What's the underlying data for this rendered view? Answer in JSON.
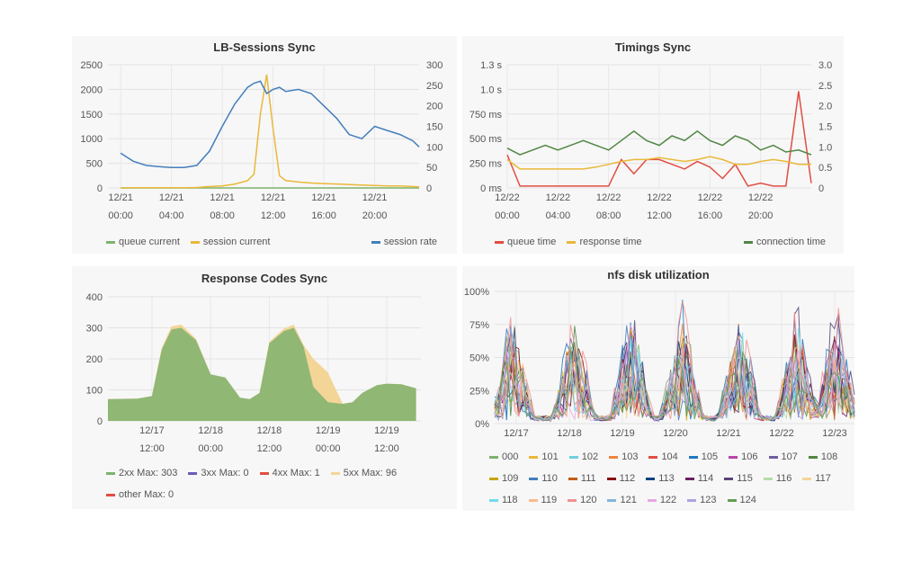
{
  "chart_data": [
    {
      "id": "lb",
      "type": "line",
      "title": "LB-Sessions Sync",
      "y_ticks_left": [
        "2500",
        "2000",
        "1500",
        "1000",
        "500",
        "0"
      ],
      "y_ticks_right": [
        "300",
        "250",
        "200",
        "150",
        "100",
        "50",
        "0"
      ],
      "ylim_left": [
        0,
        2500
      ],
      "ylim_right": [
        0,
        300
      ],
      "x_ticks": [
        {
          "date": "12/21",
          "time": "00:00"
        },
        {
          "date": "12/21",
          "time": "04:00"
        },
        {
          "date": "12/21",
          "time": "08:00"
        },
        {
          "date": "12/21",
          "time": "12:00"
        },
        {
          "date": "12/21",
          "time": "16:00"
        },
        {
          "date": "12/21",
          "time": "20:00"
        }
      ],
      "x_hours": [
        0,
        1,
        2,
        3,
        4,
        5,
        6,
        7,
        8,
        9,
        10,
        10.5,
        11,
        11.5,
        12,
        12.5,
        13,
        14,
        15,
        16,
        17,
        18,
        19,
        20,
        21,
        22,
        23,
        23.5
      ],
      "grid": true,
      "series": [
        {
          "name": "queue current",
          "color": "#7eb26d",
          "axis": "left",
          "values": [
            0,
            0,
            0,
            0,
            0,
            0,
            0,
            0,
            0,
            0,
            0,
            0,
            0,
            0,
            0,
            0,
            0,
            0,
            0,
            0,
            0,
            0,
            0,
            0,
            0,
            0,
            0,
            0
          ]
        },
        {
          "name": "session current",
          "color": "#eab839",
          "axis": "left",
          "values": [
            0,
            5,
            5,
            5,
            5,
            5,
            10,
            30,
            40,
            80,
            150,
            280,
            1500,
            2300,
            1200,
            250,
            150,
            120,
            100,
            90,
            80,
            70,
            60,
            50,
            40,
            40,
            30,
            20
          ]
        },
        {
          "name": "session rate",
          "color": "#447ebc",
          "axis": "right",
          "values": [
            85,
            65,
            55,
            52,
            50,
            50,
            55,
            90,
            150,
            205,
            245,
            255,
            260,
            230,
            240,
            245,
            235,
            240,
            230,
            200,
            170,
            130,
            120,
            150,
            140,
            130,
            115,
            100
          ]
        }
      ],
      "legend_position": "bottom"
    },
    {
      "id": "timings",
      "type": "line",
      "title": "Timings Sync",
      "y_ticks_left": [
        "1.3 s",
        "1.0 s",
        "750 ms",
        "500 ms",
        "250 ms",
        "0 ms"
      ],
      "y_ticks_right": [
        "3.0",
        "2.5",
        "2.0",
        "1.5",
        "1.0",
        "0.5",
        "0"
      ],
      "ylim_left": [
        0,
        1.3
      ],
      "ylim_right": [
        0,
        3.0
      ],
      "x_ticks": [
        {
          "date": "12/22",
          "time": "00:00"
        },
        {
          "date": "12/22",
          "time": "04:00"
        },
        {
          "date": "12/22",
          "time": "08:00"
        },
        {
          "date": "12/22",
          "time": "12:00"
        },
        {
          "date": "12/22",
          "time": "16:00"
        },
        {
          "date": "12/22",
          "time": "20:00"
        }
      ],
      "x_hours": [
        0,
        1,
        2,
        3,
        4,
        5,
        6,
        7,
        8,
        9,
        10,
        11,
        12,
        13,
        14,
        15,
        16,
        17,
        18,
        19,
        20,
        21,
        22,
        23,
        24
      ],
      "grid": true,
      "series": [
        {
          "name": "queue time",
          "color": "#e24d42",
          "axis": "left",
          "values": [
            0.35,
            0.02,
            0.02,
            0.02,
            0.02,
            0.02,
            0.02,
            0.02,
            0.02,
            0.3,
            0.15,
            0.3,
            0.3,
            0.25,
            0.2,
            0.28,
            0.22,
            0.1,
            0.25,
            0.02,
            0.05,
            0.02,
            0.02,
            1.02,
            0.05
          ]
        },
        {
          "name": "response time",
          "color": "#eab839",
          "axis": "left",
          "values": [
            0.3,
            0.2,
            0.2,
            0.2,
            0.2,
            0.2,
            0.2,
            0.22,
            0.25,
            0.28,
            0.3,
            0.3,
            0.32,
            0.3,
            0.28,
            0.3,
            0.33,
            0.3,
            0.25,
            0.25,
            0.28,
            0.3,
            0.28,
            0.25,
            0.25
          ]
        },
        {
          "name": "connection time",
          "color": "#508642",
          "axis": "left",
          "values": [
            0.42,
            0.35,
            0.4,
            0.45,
            0.4,
            0.45,
            0.5,
            0.45,
            0.4,
            0.5,
            0.6,
            0.5,
            0.45,
            0.55,
            0.5,
            0.6,
            0.5,
            0.45,
            0.55,
            0.5,
            0.4,
            0.45,
            0.38,
            0.4,
            0.35
          ]
        }
      ],
      "legend_position": "bottom"
    },
    {
      "id": "resp",
      "type": "area",
      "title": "Response Codes Sync",
      "y_ticks_left": [
        "400",
        "300",
        "200",
        "100",
        "0"
      ],
      "ylim_left": [
        0,
        400
      ],
      "x_ticks": [
        {
          "date": "12/17",
          "time": "12:00"
        },
        {
          "date": "12/18",
          "time": "00:00"
        },
        {
          "date": "12/18",
          "time": "12:00"
        },
        {
          "date": "12/19",
          "time": "00:00"
        },
        {
          "date": "12/19",
          "time": "12:00"
        }
      ],
      "x_hours": [
        0,
        6,
        9,
        11,
        13,
        15,
        18,
        21,
        24,
        27,
        29,
        31,
        33,
        36,
        38,
        40,
        42,
        45,
        48,
        50,
        52,
        55,
        57,
        60,
        63
      ],
      "grid": true,
      "series": [
        {
          "name": "2xx",
          "label": "Max: 303",
          "color": "#7eb26d",
          "values": [
            70,
            72,
            80,
            230,
            295,
            300,
            260,
            150,
            140,
            75,
            70,
            90,
            250,
            290,
            300,
            240,
            110,
            60,
            55,
            60,
            90,
            115,
            120,
            118,
            105
          ]
        },
        {
          "name": "3xx",
          "label": "Max: 0",
          "color": "#6d5bba",
          "values": []
        },
        {
          "name": "4xx",
          "label": "Max: 1",
          "color": "#e24d42",
          "values": []
        },
        {
          "name": "5xx",
          "label": "Max: 96",
          "color": "#f4d598",
          "values": [
            0,
            0,
            0,
            5,
            10,
            10,
            5,
            0,
            0,
            0,
            0,
            0,
            5,
            8,
            10,
            5,
            90,
            96,
            0,
            0,
            0,
            0,
            0,
            0,
            0
          ]
        },
        {
          "name": "other",
          "label": "Max: 0",
          "color": "#e24d42",
          "values": []
        }
      ],
      "legend_position": "bottom"
    },
    {
      "id": "nfs",
      "type": "line",
      "title": "nfs disk utilization",
      "y_ticks_left": [
        "100%",
        "75%",
        "50%",
        "25%",
        "0%"
      ],
      "ylim_left": [
        0,
        100
      ],
      "x_ticks": [
        "12/17",
        "12/18",
        "12/19",
        "12/20",
        "12/21",
        "12/22",
        "12/23"
      ],
      "grid": true,
      "series_names": [
        "000",
        "101",
        "102",
        "103",
        "104",
        "105",
        "106",
        "107",
        "108",
        "109",
        "110",
        "111",
        "112",
        "113",
        "114",
        "115",
        "116",
        "117",
        "118",
        "119",
        "120",
        "121",
        "122",
        "123",
        "124"
      ],
      "series_colors": [
        "#7eb26d",
        "#eab839",
        "#6ed0e0",
        "#ef843c",
        "#e24d42",
        "#1f78c1",
        "#ba43a9",
        "#705da0",
        "#508642",
        "#cca300",
        "#447ebc",
        "#c15c17",
        "#890f02",
        "#0a437c",
        "#6d1f62",
        "#584477",
        "#b7dbab",
        "#f4d598",
        "#70dbed",
        "#f9ba8f",
        "#f29191",
        "#82b5d8",
        "#e5a8e2",
        "#aea2e0",
        "#629e51"
      ],
      "legend_position": "bottom"
    }
  ]
}
